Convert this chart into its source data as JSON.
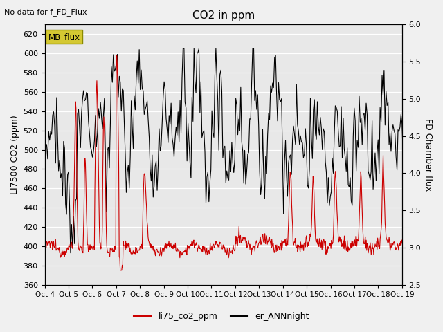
{
  "title": "CO2 in ppm",
  "top_left_text": "No data for f_FD_Flux",
  "ylabel_left": "LI7500 CO2 (ppm)",
  "ylabel_right": "FD Chamber flux",
  "ylim_left": [
    360,
    630
  ],
  "ylim_right": [
    2.5,
    6.0
  ],
  "yticks_left": [
    360,
    380,
    400,
    420,
    440,
    460,
    480,
    500,
    520,
    540,
    560,
    580,
    600,
    620
  ],
  "yticks_right": [
    2.5,
    3.0,
    3.5,
    4.0,
    4.5,
    5.0,
    5.5,
    6.0
  ],
  "xtick_labels": [
    "Oct 4",
    "Oct 5",
    "Oct 6",
    "Oct 7",
    "Oct 8",
    "Oct 9",
    "Oct 10",
    "Oct 11",
    "Oct 12",
    "Oct 13",
    "Oct 14",
    "Oct 15",
    "Oct 16",
    "Oct 17",
    "Oct 18",
    "Oct 19"
  ],
  "legend_labels": [
    "li75_co2_ppm",
    "er_ANNnight"
  ],
  "legend_colors": [
    "#cc0000",
    "#000000"
  ],
  "mb_flux_box_facecolor": "#d4c832",
  "mb_flux_box_edgecolor": "#8a8a00",
  "bg_color": "#e8e8e8",
  "line_color_red": "#cc0000",
  "line_color_black": "#000000",
  "grid_color": "#ffffff",
  "fig_facecolor": "#f0f0f0"
}
